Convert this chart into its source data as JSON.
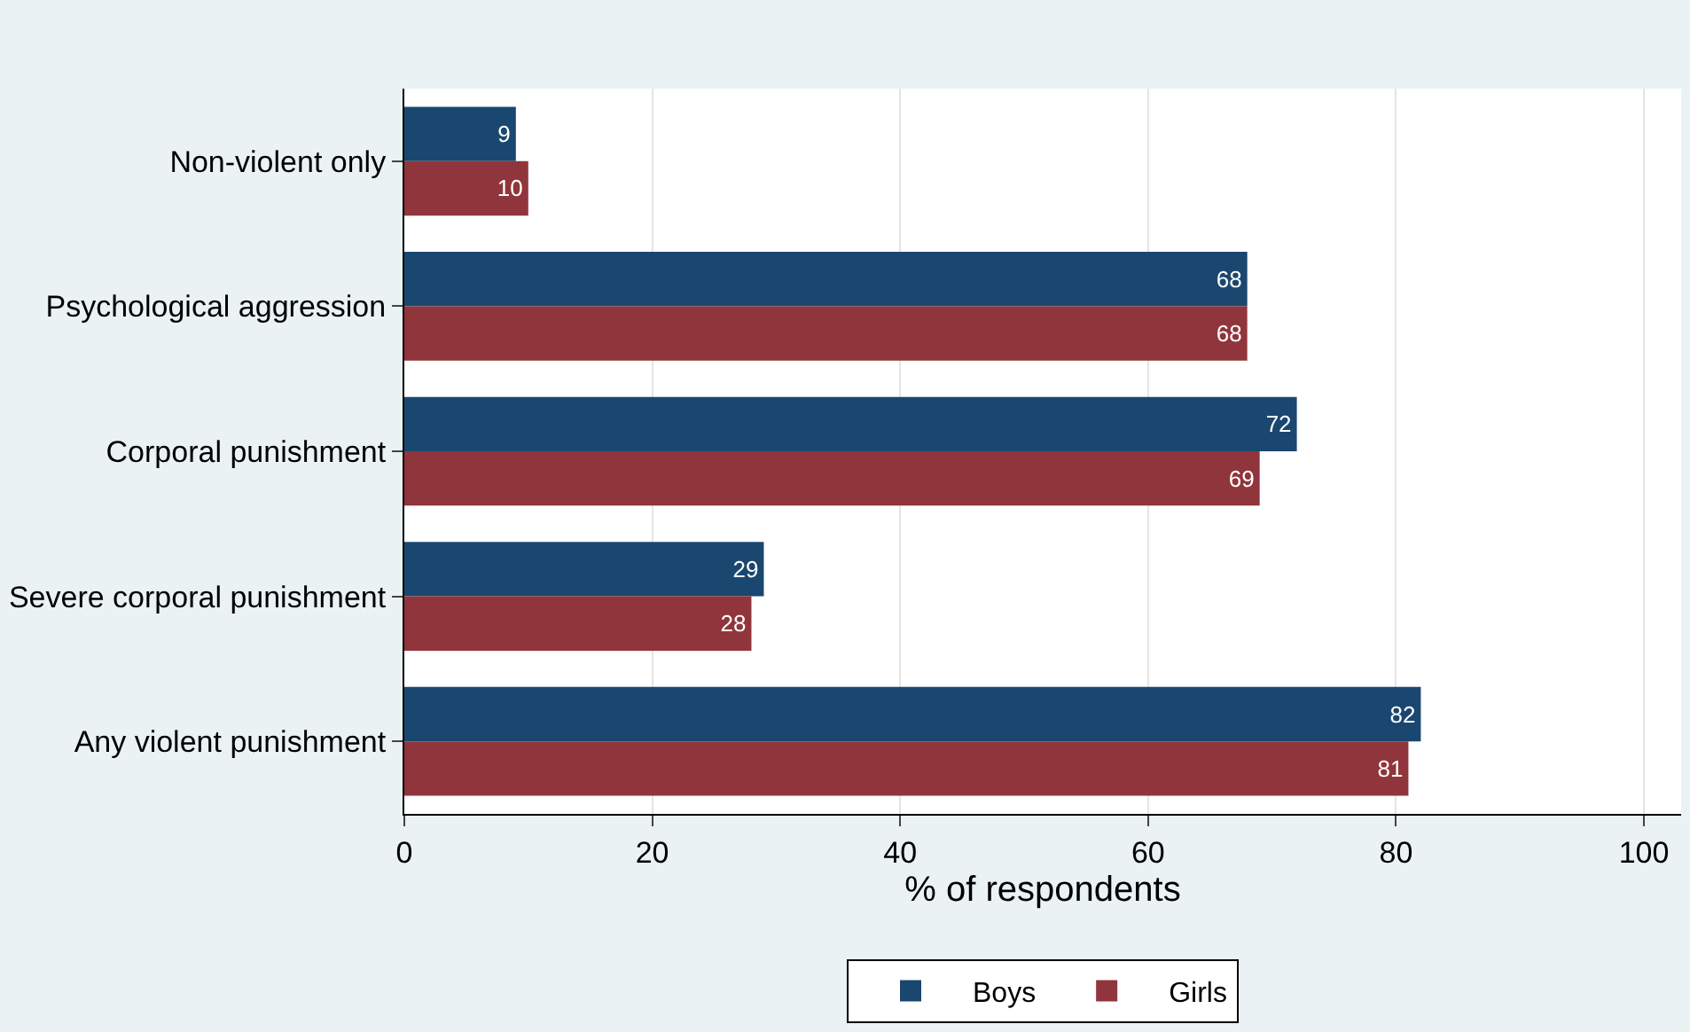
{
  "chart_data": {
    "type": "bar",
    "orientation": "horizontal",
    "categories": [
      "Non-violent only",
      "Psychological aggression",
      "Corporal punishment",
      "Severe corporal punishment",
      "Any violent punishment"
    ],
    "series": [
      {
        "name": "Boys",
        "color": "#1a476f",
        "values": [
          9,
          68,
          72,
          29,
          82
        ]
      },
      {
        "name": "Girls",
        "color": "#90353b",
        "values": [
          10,
          68,
          69,
          28,
          81
        ]
      }
    ],
    "xlabel": "% of respondents",
    "xlim": [
      0,
      103
    ],
    "xticks": [
      0,
      20,
      40,
      60,
      80,
      100
    ],
    "grid": "x",
    "legend": "bottom",
    "data_labels": true
  }
}
